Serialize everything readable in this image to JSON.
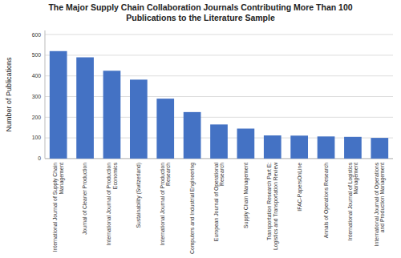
{
  "chart_data": {
    "type": "bar",
    "title": "The Major Supply Chain Collaboration Journals Contributing More Than 100\nPublications to the Literature Sample",
    "ylabel": "Number of Publications",
    "categories": [
      "International Journal of Supply Chain\nManagement",
      "Journal of Cleaner Production",
      "International Journal of Production\nEconomics",
      "Sustainability (Switzerland)",
      "International Journal of Production\nResearch",
      "Computers and Industrial Engineering",
      "European Journal of Operational\nResearch",
      "Supply Chain Management",
      "Transportation Research Part E:\nLogistics and Transportation Review",
      "IFAC-PapersOnLine",
      "Annals of Operations Research",
      "International Journal of Logistics\nManagement",
      "International Journal of Operations\nand Production Management"
    ],
    "values": [
      520,
      490,
      425,
      382,
      290,
      225,
      165,
      145,
      112,
      111,
      107,
      105,
      100
    ],
    "color": "#4472c4",
    "ylim": [
      0,
      620
    ],
    "yticks": [
      0,
      100,
      200,
      300,
      400,
      500,
      600
    ],
    "grid": true
  }
}
